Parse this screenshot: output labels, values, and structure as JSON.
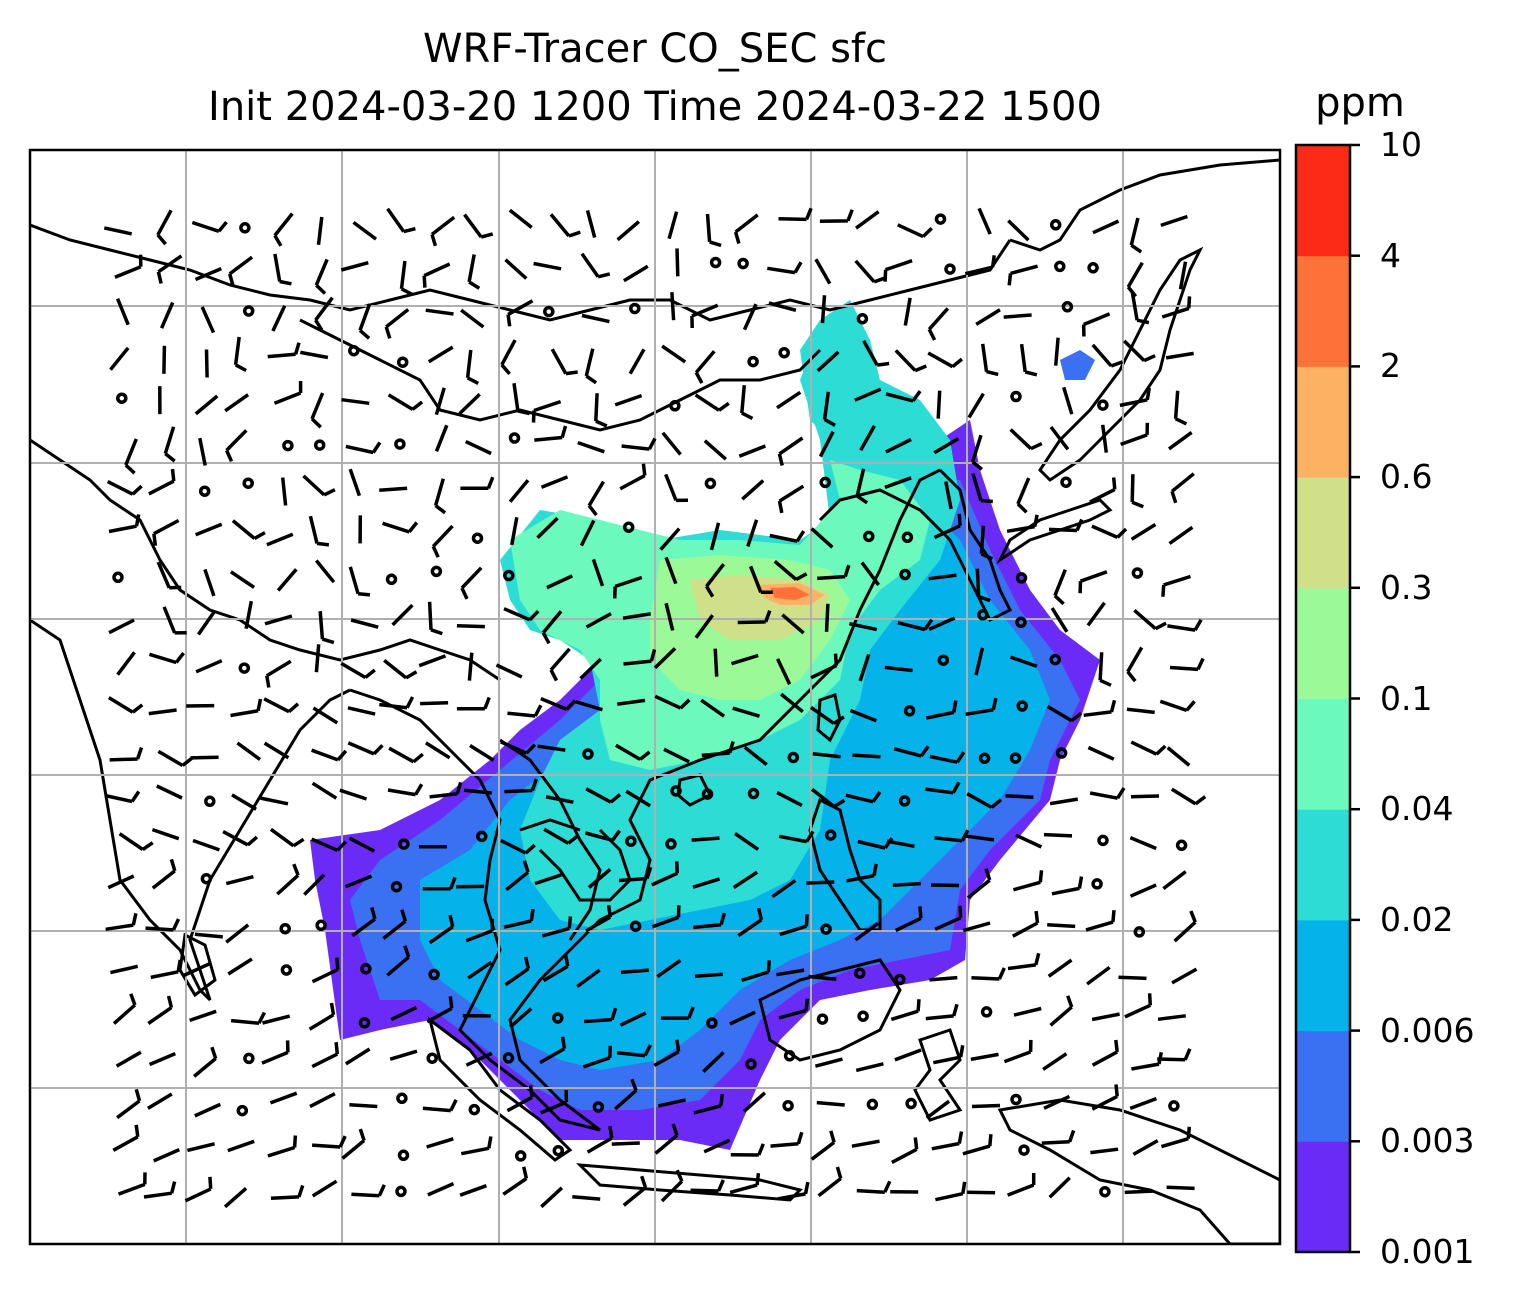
{
  "title": {
    "line1": "WRF-Tracer CO_SEC sfc",
    "line2": "Init 2024-03-20 1200 Time 2024-03-22 1500"
  },
  "colorbar": {
    "unit": "ppm",
    "levels": [
      "0.001",
      "0.003",
      "0.006",
      "0.02",
      "0.04",
      "0.1",
      "0.3",
      "0.6",
      "2",
      "4",
      "10"
    ],
    "colors": [
      "#6a2bf7",
      "#3a71f3",
      "#05b3ea",
      "#2edcd6",
      "#6cf9bd",
      "#9cf997",
      "#cfe089",
      "#fdb163",
      "#fe7139",
      "#fb2b18"
    ]
  },
  "map": {
    "gridline_color": "#b0b0b0",
    "coastline_color": "#000000"
  }
}
